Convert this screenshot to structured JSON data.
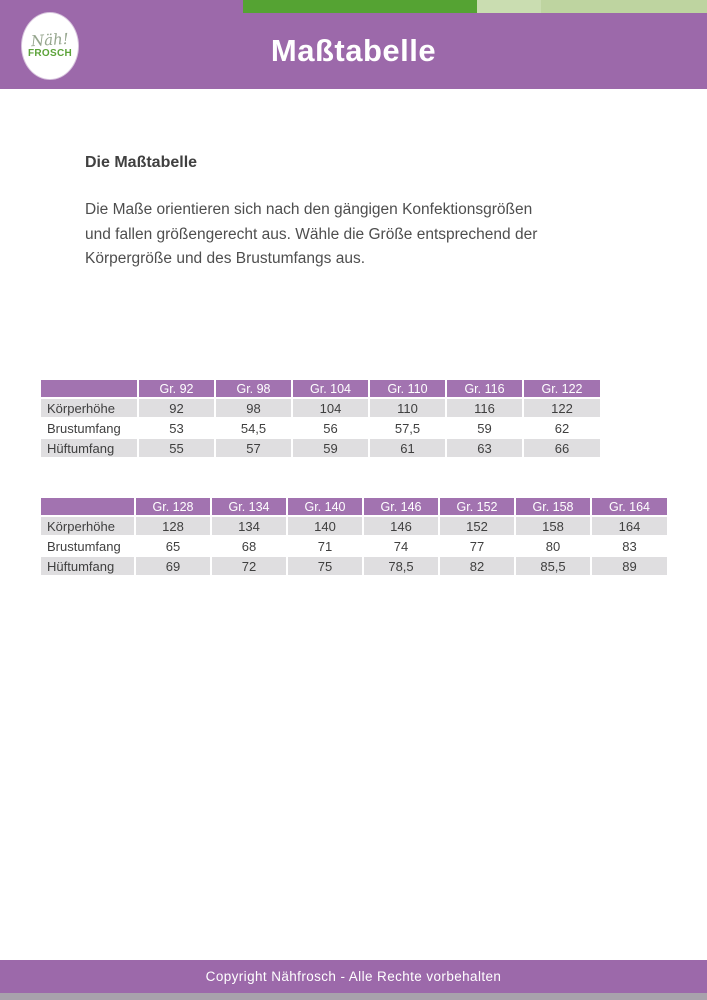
{
  "page": {
    "background": "#ffffff"
  },
  "header": {
    "title": "Maßtabelle",
    "background": "#9c69aa",
    "accent_bars": {
      "dark_green": "#55a333",
      "light_green": "#caddb1",
      "lighter_green": "#bed4a0"
    },
    "logo": {
      "script_text": "Näh!",
      "name_text": "FROSCH",
      "script_color": "#95a58d",
      "name_color": "#5ca339"
    }
  },
  "intro": {
    "heading": "Die Maßtabelle",
    "lines": [
      "Die Maße orientieren sich nach den gängigen Konfektionsgrößen",
      "und fallen größengerecht aus. Wähle die Größe entsprechend der",
      "Körpergröße und des Brustumfangs aus."
    ]
  },
  "tables": [
    {
      "headers": [
        "",
        "Gr. 92",
        "Gr. 98",
        "Gr. 104",
        "Gr. 110",
        "Gr. 116",
        "Gr. 122"
      ],
      "rows": [
        {
          "label": "Körperhöhe",
          "values": [
            "92",
            "98",
            "104",
            "110",
            "116",
            "122"
          ]
        },
        {
          "label": "Brustumfang",
          "values": [
            "53",
            "54,5",
            "56",
            "57,5",
            "59",
            "62"
          ]
        },
        {
          "label": "Hüftumfang",
          "values": [
            "55",
            "57",
            "59",
            "61",
            "63",
            "66"
          ]
        }
      ]
    },
    {
      "headers": [
        "",
        "Gr. 128",
        "Gr. 134",
        "Gr. 140",
        "Gr. 146",
        "Gr. 152",
        "Gr. 158",
        "Gr. 164"
      ],
      "rows": [
        {
          "label": "Körperhöhe",
          "values": [
            "128",
            "134",
            "140",
            "146",
            "152",
            "158",
            "164"
          ]
        },
        {
          "label": "Brustumfang",
          "values": [
            "65",
            "68",
            "71",
            "74",
            "77",
            "80",
            "83"
          ]
        },
        {
          "label": "Hüftumfang",
          "values": [
            "69",
            "72",
            "75",
            "78,5",
            "82",
            "85,5",
            "89"
          ]
        }
      ]
    }
  ],
  "table_style": {
    "header_bg": "#a273b0",
    "row_alt_bg": "#dfdee0",
    "row_bg": "#ffffff",
    "text_color": "#3f3f3f"
  },
  "footer": {
    "copyright": "Copyright Nähfrosch - Alle Rechte vorbehalten",
    "background": "#9c69aa",
    "bottom_edge_color": "#a8a2ac"
  }
}
